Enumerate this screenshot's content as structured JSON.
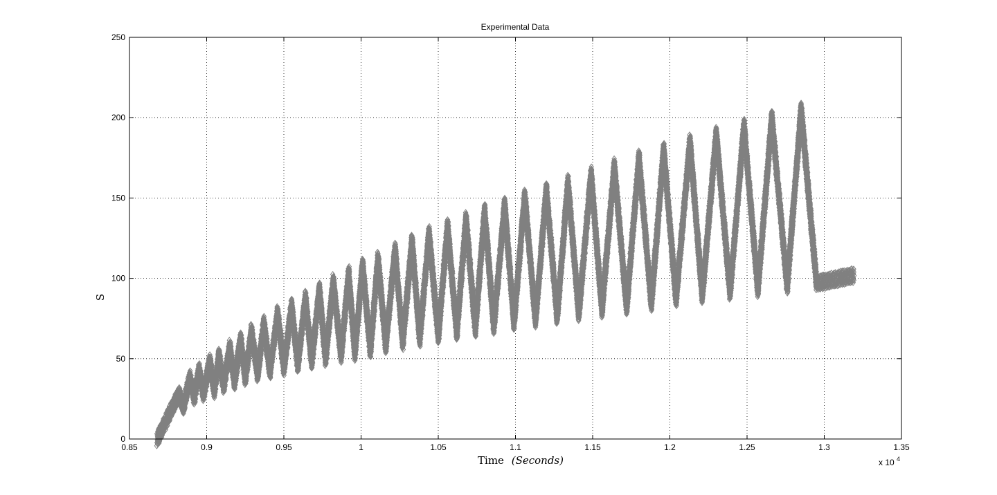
{
  "chart_data": {
    "type": "scatter",
    "title": "Experimental Data",
    "xlabel": "Time",
    "xlabel_units": "(Seconds)",
    "ylabel": "S",
    "x_multiplier": "x 10",
    "x_multiplier_exp": "4",
    "xlim": [
      0.85,
      1.35
    ],
    "ylim": [
      0,
      250
    ],
    "x_ticks": [
      0.85,
      0.9,
      0.95,
      1,
      1.05,
      1.1,
      1.15,
      1.2,
      1.25,
      1.3,
      1.35
    ],
    "x_tick_labels": [
      "0.85",
      "0.9",
      "0.95",
      "1",
      "1.05",
      "1.1",
      "1.15",
      "1.2",
      "1.25",
      "1.3",
      "1.35"
    ],
    "y_ticks": [
      0,
      50,
      100,
      150,
      200,
      250
    ],
    "y_tick_labels": [
      "0",
      "50",
      "100",
      "150",
      "200",
      "250"
    ],
    "grid": true,
    "marker": "diamond",
    "color": "#808080",
    "series": [
      {
        "x_start": 0.868,
        "x_end": 1.32,
        "peaks": [
          {
            "x": 0.882,
            "y": 28
          },
          {
            "x": 0.889,
            "y": 38
          },
          {
            "x": 0.895,
            "y": 43
          },
          {
            "x": 0.902,
            "y": 48
          },
          {
            "x": 0.908,
            "y": 52
          },
          {
            "x": 0.915,
            "y": 57
          },
          {
            "x": 0.922,
            "y": 62
          },
          {
            "x": 0.929,
            "y": 67
          },
          {
            "x": 0.937,
            "y": 72
          },
          {
            "x": 0.946,
            "y": 78
          },
          {
            "x": 0.955,
            "y": 83
          },
          {
            "x": 0.964,
            "y": 88
          },
          {
            "x": 0.973,
            "y": 93
          },
          {
            "x": 0.982,
            "y": 98
          },
          {
            "x": 0.992,
            "y": 103
          },
          {
            "x": 1.001,
            "y": 108
          },
          {
            "x": 1.011,
            "y": 112
          },
          {
            "x": 1.022,
            "y": 118
          },
          {
            "x": 1.033,
            "y": 123
          },
          {
            "x": 1.044,
            "y": 128
          },
          {
            "x": 1.056,
            "y": 132
          },
          {
            "x": 1.068,
            "y": 137
          },
          {
            "x": 1.08,
            "y": 142
          },
          {
            "x": 1.093,
            "y": 146
          },
          {
            "x": 1.106,
            "y": 151
          },
          {
            "x": 1.12,
            "y": 155
          },
          {
            "x": 1.134,
            "y": 160
          },
          {
            "x": 1.149,
            "y": 165
          },
          {
            "x": 1.164,
            "y": 170
          },
          {
            "x": 1.18,
            "y": 175
          },
          {
            "x": 1.196,
            "y": 180
          },
          {
            "x": 1.213,
            "y": 185
          },
          {
            "x": 1.23,
            "y": 190
          },
          {
            "x": 1.248,
            "y": 195
          },
          {
            "x": 1.266,
            "y": 200
          },
          {
            "x": 1.285,
            "y": 205
          }
        ],
        "troughs": [
          {
            "x": 0.868,
            "y": 0
          },
          {
            "x": 0.885,
            "y": 20
          },
          {
            "x": 0.892,
            "y": 26
          },
          {
            "x": 0.898,
            "y": 28
          },
          {
            "x": 0.905,
            "y": 30
          },
          {
            "x": 0.911,
            "y": 33
          },
          {
            "x": 0.918,
            "y": 35
          },
          {
            "x": 0.925,
            "y": 38
          },
          {
            "x": 0.933,
            "y": 40
          },
          {
            "x": 0.941,
            "y": 42
          },
          {
            "x": 0.95,
            "y": 44
          },
          {
            "x": 0.959,
            "y": 46
          },
          {
            "x": 0.968,
            "y": 48
          },
          {
            "x": 0.977,
            "y": 50
          },
          {
            "x": 0.987,
            "y": 52
          },
          {
            "x": 0.996,
            "y": 53
          },
          {
            "x": 1.006,
            "y": 55
          },
          {
            "x": 1.016,
            "y": 58
          },
          {
            "x": 1.027,
            "y": 60
          },
          {
            "x": 1.038,
            "y": 62
          },
          {
            "x": 1.05,
            "y": 64
          },
          {
            "x": 1.062,
            "y": 66
          },
          {
            "x": 1.074,
            "y": 68
          },
          {
            "x": 1.086,
            "y": 70
          },
          {
            "x": 1.099,
            "y": 72
          },
          {
            "x": 1.113,
            "y": 74
          },
          {
            "x": 1.127,
            "y": 76
          },
          {
            "x": 1.141,
            "y": 78
          },
          {
            "x": 1.156,
            "y": 80
          },
          {
            "x": 1.172,
            "y": 82
          },
          {
            "x": 1.188,
            "y": 84
          },
          {
            "x": 1.204,
            "y": 87
          },
          {
            "x": 1.221,
            "y": 89
          },
          {
            "x": 1.239,
            "y": 91
          },
          {
            "x": 1.257,
            "y": 93
          },
          {
            "x": 1.276,
            "y": 95
          },
          {
            "x": 1.295,
            "y": 97
          },
          {
            "x": 1.32,
            "y": 102
          }
        ]
      }
    ]
  }
}
